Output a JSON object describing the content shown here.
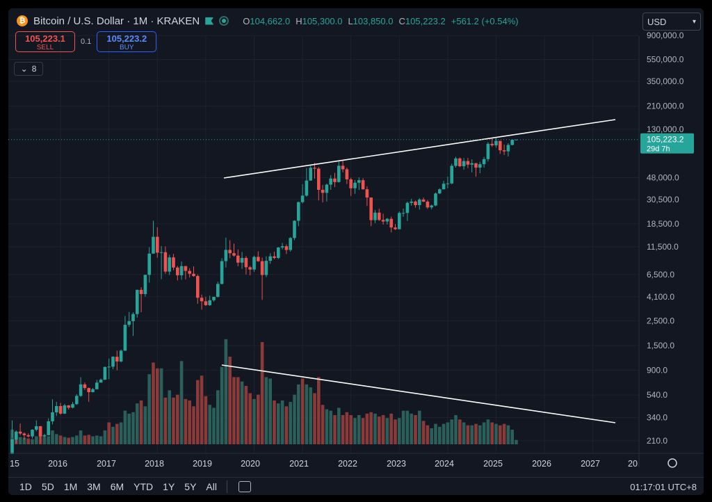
{
  "header": {
    "btc_glyph": "₿",
    "symbol": "Bitcoin / U.S. Dollar · 1M · KRAKEN",
    "o_label": "O",
    "o": "104,662.0",
    "h_label": "H",
    "h": "105,300.0",
    "l_label": "L",
    "l": "103,850.0",
    "c_label": "C",
    "c": "105,223.2",
    "change": "+561.2 (+0.54%)"
  },
  "trade": {
    "sell_price": "105,223.1",
    "sell_label": "SELL",
    "spread": "0.1",
    "buy_price": "105,223.2",
    "buy_label": "BUY"
  },
  "indicators_count": "8",
  "currency": "USD",
  "price_label": {
    "price": "105,223.2",
    "countdown": "29d 7h"
  },
  "chart_data": {
    "type": "candlestick",
    "y_scale": "log",
    "y_ticks": [
      "900,000.0",
      "550,000.0",
      "350,000.0",
      "210,000.0",
      "130,000.0",
      "48,000.0",
      "30,500.0",
      "18,500.0",
      "11,500.0",
      "6,500.0",
      "4,100.0",
      "2,500.0",
      "1,500.0",
      "900.0",
      "540.0",
      "340.0",
      "210.0"
    ],
    "x_ticks": [
      "15",
      "2016",
      "2017",
      "2018",
      "2019",
      "2020",
      "2021",
      "2022",
      "2023",
      "2024",
      "2025",
      "2026",
      "2027",
      "20"
    ],
    "candles": [
      [
        "2015-01",
        320,
        225,
        160,
        217
      ],
      [
        "2015-02",
        260,
        200,
        215,
        254
      ],
      [
        "2015-03",
        300,
        235,
        254,
        244
      ],
      [
        "2015-04",
        250,
        215,
        244,
        236
      ],
      [
        "2015-05",
        245,
        225,
        236,
        230
      ],
      [
        "2015-06",
        267,
        220,
        230,
        264
      ],
      [
        "2015-07",
        320,
        255,
        264,
        284
      ],
      [
        "2015-08",
        285,
        198,
        284,
        230
      ],
      [
        "2015-09",
        243,
        225,
        230,
        236
      ],
      [
        "2015-10",
        334,
        235,
        236,
        314
      ],
      [
        "2015-11",
        495,
        295,
        314,
        378
      ],
      [
        "2015-12",
        470,
        350,
        378,
        430
      ],
      [
        "2016-01",
        460,
        360,
        430,
        368
      ],
      [
        "2016-02",
        450,
        365,
        368,
        436
      ],
      [
        "2016-03",
        440,
        400,
        436,
        416
      ],
      [
        "2016-04",
        468,
        410,
        416,
        448
      ],
      [
        "2016-05",
        550,
        440,
        448,
        531
      ],
      [
        "2016-06",
        780,
        520,
        531,
        673
      ],
      [
        "2016-07",
        700,
        600,
        673,
        624
      ],
      [
        "2016-08",
        630,
        470,
        624,
        573
      ],
      [
        "2016-09",
        625,
        570,
        573,
        609
      ],
      [
        "2016-10",
        740,
        606,
        609,
        698
      ],
      [
        "2016-11",
        760,
        700,
        698,
        742
      ],
      [
        "2016-12",
        975,
        735,
        742,
        963
      ],
      [
        "2017-01",
        1150,
        750,
        963,
        970
      ],
      [
        "2017-02",
        1200,
        920,
        970,
        1190
      ],
      [
        "2017-03",
        1350,
        900,
        1190,
        1080
      ],
      [
        "2017-04",
        1380,
        1060,
        1080,
        1350
      ],
      [
        "2017-05",
        2760,
        1340,
        1350,
        2300
      ],
      [
        "2017-06",
        3000,
        2200,
        2300,
        2480
      ],
      [
        "2017-07",
        2980,
        1830,
        2480,
        2875
      ],
      [
        "2017-08",
        4750,
        2670,
        2875,
        4735
      ],
      [
        "2017-09",
        5000,
        2980,
        4735,
        4340
      ],
      [
        "2017-10",
        6470,
        4110,
        4340,
        6450
      ],
      [
        "2017-11",
        11400,
        5500,
        6450,
        10000
      ],
      [
        "2017-12",
        19700,
        10900,
        10000,
        14150
      ],
      [
        "2018-01",
        17200,
        9200,
        14150,
        10200
      ],
      [
        "2018-02",
        11700,
        5900,
        10200,
        10300
      ],
      [
        "2018-03",
        11600,
        6600,
        10300,
        6900
      ],
      [
        "2018-04",
        9750,
        6430,
        6900,
        9250
      ],
      [
        "2018-05",
        9950,
        7100,
        9250,
        7500
      ],
      [
        "2018-06",
        7760,
        5750,
        7500,
        6390
      ],
      [
        "2018-07",
        8500,
        5830,
        6390,
        7730
      ],
      [
        "2018-08",
        7750,
        5880,
        7730,
        7000
      ],
      [
        "2018-09",
        7400,
        6100,
        7000,
        6600
      ],
      [
        "2018-10",
        7680,
        6200,
        6600,
        6300
      ],
      [
        "2018-11",
        6500,
        3550,
        6300,
        4020
      ],
      [
        "2018-12",
        4300,
        3150,
        4020,
        3740
      ],
      [
        "2019-01",
        4100,
        3400,
        3740,
        3450
      ],
      [
        "2019-02",
        4200,
        3400,
        3450,
        3820
      ],
      [
        "2019-03",
        4100,
        3700,
        3820,
        4100
      ],
      [
        "2019-04",
        5600,
        4050,
        4100,
        5350
      ],
      [
        "2019-05",
        9100,
        5300,
        5350,
        8560
      ],
      [
        "2019-06",
        13900,
        7500,
        8560,
        10800
      ],
      [
        "2019-07",
        13200,
        9100,
        10800,
        10080
      ],
      [
        "2019-08",
        12300,
        9400,
        10080,
        9600
      ],
      [
        "2019-09",
        10900,
        7700,
        9600,
        8300
      ],
      [
        "2019-10",
        10350,
        7300,
        8300,
        9150
      ],
      [
        "2019-11",
        9500,
        6500,
        9150,
        7550
      ],
      [
        "2019-12",
        7750,
        6400,
        7550,
        7200
      ],
      [
        "2020-01",
        9600,
        6850,
        7200,
        9350
      ],
      [
        "2020-02",
        10500,
        8450,
        9350,
        8550
      ],
      [
        "2020-03",
        9200,
        3850,
        8550,
        6430
      ],
      [
        "2020-04",
        9450,
        6150,
        6430,
        8620
      ],
      [
        "2020-05",
        10080,
        8100,
        8620,
        9450
      ],
      [
        "2020-06",
        10400,
        8900,
        9450,
        9140
      ],
      [
        "2020-07",
        11450,
        8950,
        9140,
        11350
      ],
      [
        "2020-08",
        12480,
        10900,
        11350,
        11650
      ],
      [
        "2020-09",
        12100,
        9900,
        11650,
        10780
      ],
      [
        "2020-10",
        14100,
        10400,
        10780,
        13800
      ],
      [
        "2020-11",
        19900,
        13200,
        13800,
        19700
      ],
      [
        "2020-12",
        29300,
        17600,
        19700,
        28950
      ],
      [
        "2021-01",
        41900,
        28100,
        28950,
        33100
      ],
      [
        "2021-02",
        58400,
        32350,
        33100,
        45200
      ],
      [
        "2021-03",
        61800,
        44950,
        45200,
        58800
      ],
      [
        "2021-04",
        64900,
        47000,
        58800,
        57750
      ],
      [
        "2021-05",
        59600,
        30000,
        57750,
        37300
      ],
      [
        "2021-06",
        41300,
        28800,
        37300,
        35040
      ],
      [
        "2021-07",
        42400,
        29300,
        35040,
        41500
      ],
      [
        "2021-08",
        50500,
        37300,
        41500,
        47100
      ],
      [
        "2021-09",
        52900,
        39600,
        47100,
        43800
      ],
      [
        "2021-10",
        67000,
        43300,
        43800,
        61300
      ],
      [
        "2021-11",
        69000,
        53500,
        61300,
        57000
      ],
      [
        "2021-12",
        59100,
        42000,
        57000,
        46300
      ],
      [
        "2022-01",
        47900,
        32900,
        46300,
        38500
      ],
      [
        "2022-02",
        45800,
        34300,
        38500,
        43200
      ],
      [
        "2022-03",
        48200,
        37200,
        43200,
        45500
      ],
      [
        "2022-04",
        47400,
        37500,
        45500,
        37700
      ],
      [
        "2022-05",
        40000,
        26700,
        37700,
        31800
      ],
      [
        "2022-06",
        31900,
        17600,
        31800,
        19950
      ],
      [
        "2022-07",
        24600,
        18800,
        19950,
        23300
      ],
      [
        "2022-08",
        25200,
        19600,
        23300,
        20050
      ],
      [
        "2022-09",
        22800,
        18200,
        20050,
        19400
      ],
      [
        "2022-10",
        20900,
        18200,
        19400,
        20500
      ],
      [
        "2022-11",
        21500,
        15500,
        20500,
        17150
      ],
      [
        "2022-12",
        18400,
        16300,
        17150,
        16550
      ],
      [
        "2023-01",
        23950,
        16500,
        16550,
        23150
      ],
      [
        "2023-02",
        25300,
        21400,
        23150,
        23150
      ],
      [
        "2023-03",
        29200,
        19600,
        23150,
        28500
      ],
      [
        "2023-04",
        31000,
        26900,
        28500,
        29300
      ],
      [
        "2023-05",
        29850,
        25800,
        29300,
        27200
      ],
      [
        "2023-06",
        31450,
        24800,
        27200,
        30500
      ],
      [
        "2023-07",
        31800,
        28900,
        30500,
        29250
      ],
      [
        "2023-08",
        30200,
        25200,
        29250,
        25950
      ],
      [
        "2023-09",
        27500,
        24900,
        25950,
        27000
      ],
      [
        "2023-10",
        35300,
        26600,
        27000,
        34600
      ],
      [
        "2023-11",
        38500,
        34100,
        34600,
        37700
      ],
      [
        "2023-12",
        45000,
        37600,
        37700,
        42300
      ],
      [
        "2024-01",
        48900,
        38500,
        42300,
        42600
      ],
      [
        "2024-02",
        64000,
        41900,
        42600,
        61200
      ],
      [
        "2024-03",
        73800,
        59000,
        61200,
        71300
      ],
      [
        "2024-04",
        72800,
        59600,
        71300,
        60700
      ],
      [
        "2024-05",
        71900,
        56500,
        60700,
        67500
      ],
      [
        "2024-06",
        72000,
        58400,
        67500,
        62700
      ],
      [
        "2024-07",
        70000,
        53500,
        62700,
        64600
      ],
      [
        "2024-08",
        65000,
        49000,
        64600,
        59000
      ],
      [
        "2024-09",
        66500,
        52600,
        59000,
        63300
      ],
      [
        "2024-10",
        73600,
        58900,
        63300,
        70300
      ],
      [
        "2024-11",
        99800,
        66800,
        70300,
        96400
      ],
      [
        "2024-12",
        108300,
        90500,
        96400,
        93400
      ],
      [
        "2025-01",
        109300,
        89200,
        93400,
        102400
      ],
      [
        "2025-02",
        102500,
        78200,
        102400,
        84300
      ],
      [
        "2025-03",
        95000,
        76600,
        84300,
        82500
      ],
      [
        "2025-04",
        97900,
        74400,
        82500,
        94200
      ],
      [
        "2025-05",
        105300,
        93400,
        94200,
        104662
      ],
      [
        "2025-06",
        105300,
        103850,
        104662,
        105223
      ]
    ],
    "volume_ticks": [],
    "volumes": [
      [
        1,
        1
      ],
      [
        0.6,
        0
      ],
      [
        0.5,
        1
      ],
      [
        0.45,
        1
      ],
      [
        0.4,
        0
      ],
      [
        0.35,
        1
      ],
      [
        0.55,
        1
      ],
      [
        0.8,
        0
      ],
      [
        0.5,
        1
      ],
      [
        0.55,
        1
      ],
      [
        0.95,
        1
      ],
      [
        0.7,
        1
      ],
      [
        0.6,
        0
      ],
      [
        0.5,
        1
      ],
      [
        0.45,
        0
      ],
      [
        0.5,
        1
      ],
      [
        0.6,
        1
      ],
      [
        0.95,
        1
      ],
      [
        0.6,
        0
      ],
      [
        0.65,
        0
      ],
      [
        0.55,
        1
      ],
      [
        0.6,
        1
      ],
      [
        0.55,
        1
      ],
      [
        0.95,
        1
      ],
      [
        1.5,
        0
      ],
      [
        1.2,
        1
      ],
      [
        1.4,
        0
      ],
      [
        1.5,
        1
      ],
      [
        2.3,
        1
      ],
      [
        2.1,
        1
      ],
      [
        2.2,
        1
      ],
      [
        2.8,
        1
      ],
      [
        3.0,
        0
      ],
      [
        2.6,
        1
      ],
      [
        4.8,
        1
      ],
      [
        5.6,
        0
      ],
      [
        5.2,
        0
      ],
      [
        5.2,
        1
      ],
      [
        3.2,
        0
      ],
      [
        3.7,
        1
      ],
      [
        3.2,
        0
      ],
      [
        3.4,
        0
      ],
      [
        5.7,
        1
      ],
      [
        3.1,
        0
      ],
      [
        3.0,
        0
      ],
      [
        2.6,
        0
      ],
      [
        4.4,
        0
      ],
      [
        4.7,
        0
      ],
      [
        3.3,
        0
      ],
      [
        2.7,
        1
      ],
      [
        2.5,
        1
      ],
      [
        3.7,
        1
      ],
      [
        5.3,
        1
      ],
      [
        7.2,
        1
      ],
      [
        6.0,
        0
      ],
      [
        4.6,
        0
      ],
      [
        4.6,
        0
      ],
      [
        4.3,
        1
      ],
      [
        4.0,
        0
      ],
      [
        3.5,
        0
      ],
      [
        3.1,
        1
      ],
      [
        3.4,
        0
      ],
      [
        7.0,
        0
      ],
      [
        4.6,
        1
      ],
      [
        4.5,
        1
      ],
      [
        3.0,
        0
      ],
      [
        2.8,
        1
      ],
      [
        3.0,
        1
      ],
      [
        2.6,
        0
      ],
      [
        2.9,
        1
      ],
      [
        3.4,
        1
      ],
      [
        4.1,
        1
      ],
      [
        4.5,
        0
      ],
      [
        4.1,
        1
      ],
      [
        3.9,
        1
      ],
      [
        3.5,
        0
      ],
      [
        4.6,
        0
      ],
      [
        2.7,
        0
      ],
      [
        2.4,
        1
      ],
      [
        2.3,
        1
      ],
      [
        2.0,
        0
      ],
      [
        2.5,
        1
      ],
      [
        2.0,
        0
      ],
      [
        2.2,
        0
      ],
      [
        2.0,
        0
      ],
      [
        1.8,
        1
      ],
      [
        2.0,
        1
      ],
      [
        1.8,
        0
      ],
      [
        2.1,
        0
      ],
      [
        2.2,
        0
      ],
      [
        2.1,
        1
      ],
      [
        1.9,
        0
      ],
      [
        2.0,
        0
      ],
      [
        1.8,
        1
      ],
      [
        2.1,
        0
      ],
      [
        1.7,
        0
      ],
      [
        1.8,
        1
      ],
      [
        2.3,
        1
      ],
      [
        2.3,
        1
      ],
      [
        2.1,
        1
      ],
      [
        2.0,
        0
      ],
      [
        2.3,
        1
      ],
      [
        1.6,
        0
      ],
      [
        1.3,
        0
      ],
      [
        1.1,
        1
      ],
      [
        1.4,
        1
      ],
      [
        1.2,
        1
      ],
      [
        1.4,
        1
      ],
      [
        1.5,
        1
      ],
      [
        1.7,
        1
      ],
      [
        2.0,
        1
      ],
      [
        1.7,
        0
      ],
      [
        1.5,
        1
      ],
      [
        1.3,
        0
      ],
      [
        1.3,
        1
      ],
      [
        1.4,
        0
      ],
      [
        1.3,
        1
      ],
      [
        1.5,
        1
      ],
      [
        1.7,
        1
      ],
      [
        1.5,
        0
      ],
      [
        1.4,
        1
      ],
      [
        1.3,
        0
      ],
      [
        1.4,
        0
      ],
      [
        1.3,
        1
      ],
      [
        1.0,
        1
      ],
      [
        0.3,
        1
      ]
    ]
  },
  "x_labels": [
    "15",
    "2016",
    "2017",
    "2018",
    "2019",
    "2020",
    "2021",
    "2022",
    "2023",
    "2024",
    "2025",
    "2026",
    "2027",
    "20"
  ],
  "ranges": [
    "1D",
    "5D",
    "1M",
    "3M",
    "6M",
    "YTD",
    "1Y",
    "5Y",
    "All"
  ],
  "clock": "01:17:01 UTC+8",
  "colors": {
    "bg": "#131722",
    "up": "#26a69a",
    "down": "#ef5350",
    "vol_up": "#2b5f5a",
    "vol_down": "#8b3a3a",
    "grid": "#1e222d",
    "text": "#d1d4dc"
  }
}
